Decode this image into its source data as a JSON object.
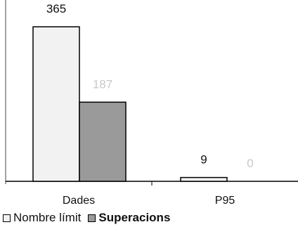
{
  "chart_data": {
    "type": "bar",
    "categories": [
      "Dades",
      "P95"
    ],
    "series": [
      {
        "name": "Nombre límit",
        "values": [
          365,
          9
        ],
        "color": "#f2f2f2",
        "label_color": "#111111"
      },
      {
        "name": "Superacions",
        "values": [
          187,
          0
        ],
        "color": "#9a9a9a",
        "label_color": "#c8c8c8"
      }
    ],
    "ylim": [
      0,
      420
    ],
    "legend_position": "bottom-left",
    "grid": false
  }
}
